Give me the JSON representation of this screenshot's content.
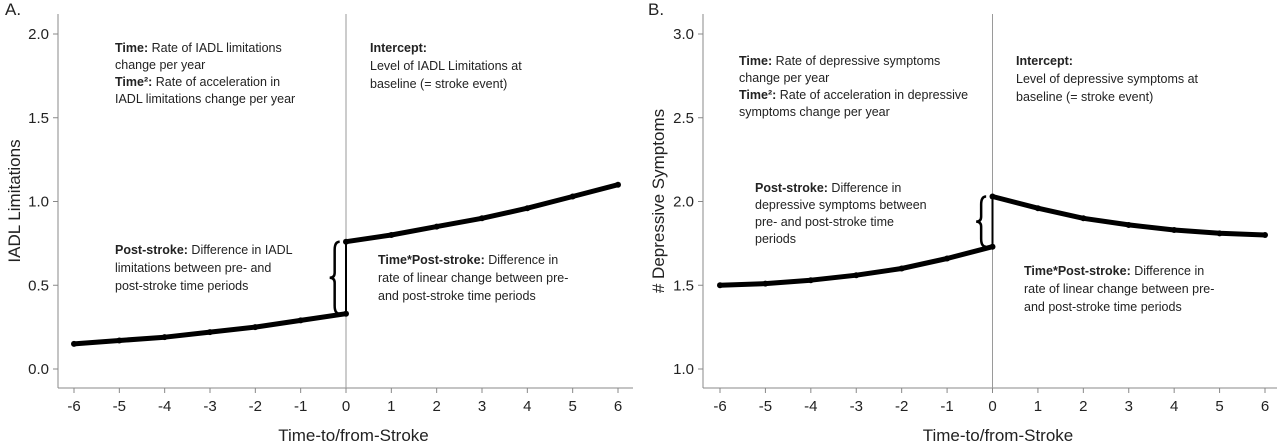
{
  "chart_data": [
    {
      "panel": "A.",
      "type": "line",
      "xlabel": "Time-to/from-Stroke",
      "ylabel": "IADL Limitations",
      "xlim": [
        -6,
        6
      ],
      "ylim": [
        0.0,
        2.0
      ],
      "xticks": [
        "-6",
        "-5",
        "-4",
        "-3",
        "-2",
        "-1",
        "0",
        "1",
        "2",
        "3",
        "4",
        "5",
        "6"
      ],
      "yticks": [
        "0.0",
        "0.5",
        "1.0",
        "1.5",
        "2.0"
      ],
      "grid": false,
      "reference_line_x": 0,
      "series": [
        {
          "x": [
            -6,
            -5,
            -4,
            -3,
            -2,
            -1,
            0,
            0,
            1,
            2,
            3,
            4,
            5,
            6
          ],
          "y": [
            0.15,
            0.17,
            0.19,
            0.22,
            0.25,
            0.29,
            0.33,
            0.76,
            0.8,
            0.85,
            0.9,
            0.96,
            1.03,
            1.1
          ]
        }
      ],
      "brace": {
        "x": -0.25,
        "y_from": 0.33,
        "y_to": 0.76
      },
      "annotations": [
        {
          "bold": "Time:",
          "text": " Rate of IADL limitations",
          "line2": "change per year"
        },
        {
          "bold": "Time²:",
          "text": " Rate of acceleration in",
          "line2": "IADL limitations change per year"
        },
        {
          "bold": "Intercept:",
          "text": "",
          "line2": "Level of IADL Limitations at",
          "line3": "baseline (= stroke event)"
        },
        {
          "bold": "Post-stroke:",
          "text": " Difference in IADL",
          "line2": "limitations between pre- and",
          "line3": "post-stroke time periods"
        },
        {
          "bold": "Time*Post-stroke:",
          "text": " Difference in",
          "line2": "rate of linear change between pre-",
          "line3": "and post-stroke time periods"
        }
      ]
    },
    {
      "panel": "B.",
      "type": "line",
      "xlabel": "Time-to/from-Stroke",
      "ylabel": "# Depressive Symptoms",
      "xlim": [
        -6,
        6
      ],
      "ylim": [
        1.0,
        3.0
      ],
      "xticks": [
        "-6",
        "-5",
        "-4",
        "-3",
        "-2",
        "-1",
        "0",
        "1",
        "2",
        "3",
        "4",
        "5",
        "6"
      ],
      "yticks": [
        "1.0",
        "1.5",
        "2.0",
        "2.5",
        "3.0"
      ],
      "grid": false,
      "reference_line_x": 0,
      "series": [
        {
          "x": [
            -6,
            -5,
            -4,
            -3,
            -2,
            -1,
            0,
            0,
            1,
            2,
            3,
            4,
            5,
            6
          ],
          "y": [
            1.5,
            1.51,
            1.53,
            1.56,
            1.6,
            1.66,
            1.73,
            2.03,
            1.96,
            1.9,
            1.86,
            1.83,
            1.81,
            1.8
          ]
        }
      ],
      "brace": {
        "x": -0.25,
        "y_from": 1.73,
        "y_to": 2.03
      },
      "annotations": [
        {
          "bold": "Time:",
          "text": " Rate of depressive symptoms",
          "line2": "change per year"
        },
        {
          "bold": "Time²:",
          "text": " Rate of acceleration in depressive",
          "line2": "symptoms change per year"
        },
        {
          "bold": "Intercept:",
          "text": "",
          "line2": "Level of depressive symptoms at",
          "line3": "baseline (= stroke event)"
        },
        {
          "bold": "Post-stroke:",
          "text": " Difference in",
          "line2": "depressive symptoms between",
          "line3": "pre- and post-stroke time",
          "line4": "periods"
        },
        {
          "bold": "Time*Post-stroke:",
          "text": " Difference in",
          "line2": "rate of linear change between pre-",
          "line3": "and post-stroke time periods"
        }
      ]
    }
  ]
}
